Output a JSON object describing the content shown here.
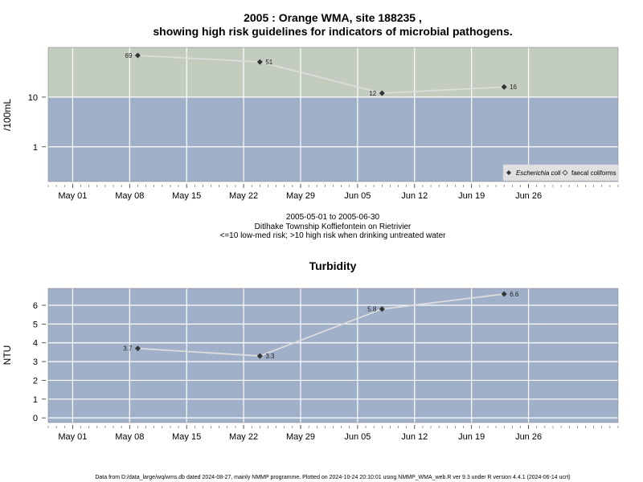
{
  "chart_data": [
    {
      "type": "line",
      "title_line1": "2005 : Orange WMA, site 188235 ,",
      "title_line2": "showing high risk guidelines for indicators of microbial pathogens.",
      "ylabel": "/100mL",
      "y_scale": "log",
      "ylim": [
        0.2,
        100
      ],
      "yticks": [
        1,
        10
      ],
      "ytick_labels": [
        "1",
        "10"
      ],
      "x_range": [
        "2005-04-28",
        "2005-07-07"
      ],
      "xticks": [
        "2005-05-01",
        "2005-05-08",
        "2005-05-15",
        "2005-05-22",
        "2005-05-29",
        "2005-06-05",
        "2005-06-12",
        "2005-06-19",
        "2005-06-26"
      ],
      "xtick_labels": [
        "May 01",
        "May 08",
        "May 15",
        "May 22",
        "May 29",
        "Jun 05",
        "Jun 12",
        "Jun 19",
        "Jun 26"
      ],
      "grid": true,
      "bands": [
        {
          "from": 10,
          "to": 100,
          "color": "#c3cdbf"
        },
        {
          "from": 0.2,
          "to": 10,
          "color": "#a0b0c9"
        }
      ],
      "legend_position": "bottom-right",
      "series": [
        {
          "name": "Escherichia coli",
          "marker": "filled-diamond",
          "line_color": "#dddddd",
          "x": [
            "2005-05-09",
            "2005-05-24",
            "2005-06-08",
            "2005-06-23"
          ],
          "values": [
            69,
            51,
            12,
            16
          ],
          "labels": [
            "69",
            "51",
            "12",
            "16"
          ],
          "label_side": [
            "left",
            "right",
            "left",
            "right"
          ]
        },
        {
          "name": "faecal coliforms",
          "marker": "open-diamond",
          "x": [],
          "values": []
        }
      ],
      "caption": [
        "2005-05-01 to 2005-06-30",
        "Ditlhake Township Koffiefontein on Rietrivier",
        "<=10 low-med risk; >10 high risk when drinking untreated water"
      ]
    },
    {
      "type": "line",
      "title": "Turbidity",
      "ylabel": "NTU",
      "ylim": [
        -0.25,
        6.9
      ],
      "yticks": [
        0,
        1,
        2,
        3,
        4,
        5,
        6
      ],
      "ytick_labels": [
        "0",
        "1",
        "2",
        "3",
        "4",
        "5",
        "6"
      ],
      "x_range": [
        "2005-04-28",
        "2005-07-07"
      ],
      "xticks": [
        "2005-05-01",
        "2005-05-08",
        "2005-05-15",
        "2005-05-22",
        "2005-05-29",
        "2005-06-05",
        "2005-06-12",
        "2005-06-19",
        "2005-06-26"
      ],
      "xtick_labels": [
        "May 01",
        "May 08",
        "May 15",
        "May 22",
        "May 29",
        "Jun 05",
        "Jun 12",
        "Jun 19",
        "Jun 26"
      ],
      "grid": true,
      "background_color": "#a0b0c9",
      "series": [
        {
          "marker": "filled-diamond",
          "line_color": "#dddddd",
          "x": [
            "2005-05-09",
            "2005-05-24",
            "2005-06-08",
            "2005-06-23"
          ],
          "values": [
            3.7,
            3.3,
            5.8,
            6.6
          ],
          "labels": [
            "3.7",
            "3.3",
            "5.8",
            "6.6"
          ],
          "label_side": [
            "left",
            "right",
            "left",
            "right"
          ]
        }
      ]
    }
  ],
  "footer": "Data from D:/data_large/wq/wms.db dated 2024-08-27, mainly NMMP programme. Plotted on 2024-10-24 20:10:01 using NMMP_WMA_web.R ver 9.3 under R version 4.4.1 (2024-06-14 ucrt)"
}
